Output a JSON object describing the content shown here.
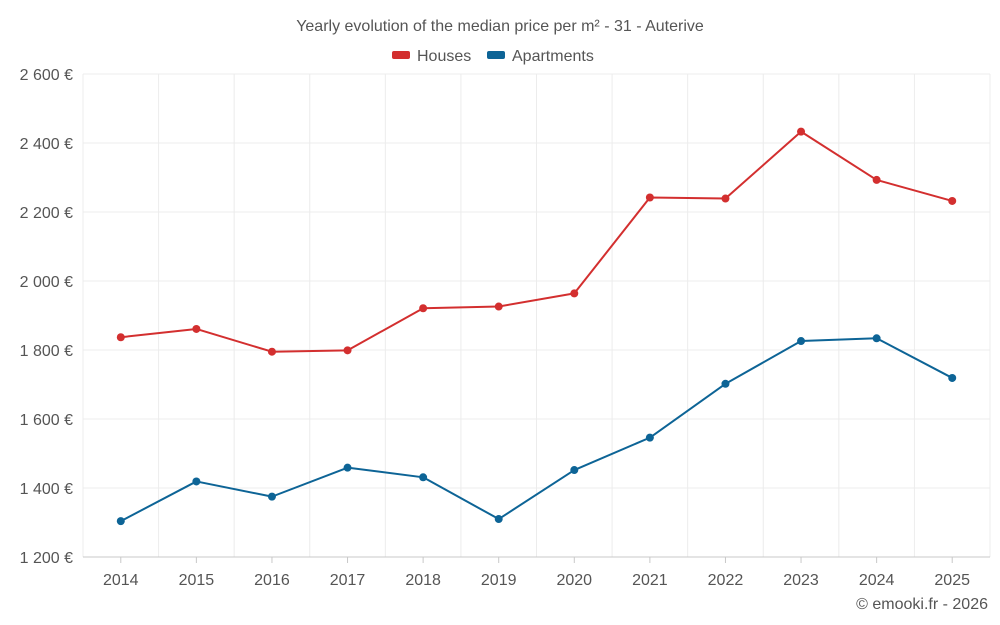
{
  "chart_data": {
    "type": "line",
    "title": "Yearly evolution of the median price per m² - 31 - Auterive",
    "categories": [
      "2014",
      "2015",
      "2016",
      "2017",
      "2018",
      "2019",
      "2020",
      "2021",
      "2022",
      "2023",
      "2024",
      "2025"
    ],
    "series": [
      {
        "name": "Houses",
        "color": "#d32f2f",
        "values": [
          1837,
          1861,
          1795,
          1799,
          1921,
          1926,
          1964,
          2242,
          2239,
          2433,
          2293,
          2232
        ]
      },
      {
        "name": "Apartments",
        "color": "#0d6496",
        "values": [
          1304,
          1419,
          1375,
          1459,
          1431,
          1310,
          1452,
          1546,
          1702,
          1826,
          1834,
          1719
        ]
      }
    ],
    "ylim": [
      1200,
      2600
    ],
    "yticks": [
      1200,
      1400,
      1600,
      1800,
      2000,
      2200,
      2400,
      2600
    ],
    "ytick_labels": [
      "1 200 €",
      "1 400 €",
      "1 600 €",
      "1 800 €",
      "2 000 €",
      "2 200 €",
      "2 400 €",
      "2 600 €"
    ],
    "xlabel": "",
    "ylabel": "",
    "legend_position": "top-center",
    "grid": true
  },
  "footer": {
    "credit": "© emooki.fr - 2026"
  }
}
